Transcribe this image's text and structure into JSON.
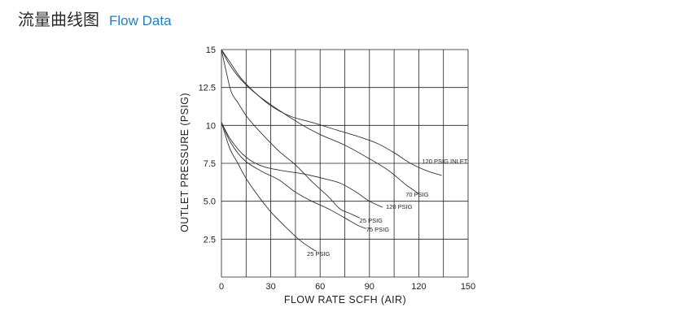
{
  "header": {
    "title_cn": "流量曲线图",
    "title_en": "Flow Data"
  },
  "chart_data": {
    "type": "line",
    "xlabel": "FLOW  RATE SCFH (AIR)",
    "ylabel": "OUTLET  PRESSURE (PSIG)",
    "xlim": [
      0,
      150
    ],
    "ylim": [
      0,
      15
    ],
    "x_ticks": [
      "0",
      "30",
      "60",
      "90",
      "120",
      "150"
    ],
    "y_ticks": [
      {
        "value": 15,
        "label": "15"
      },
      {
        "value": 12.5,
        "label": "12.5"
      },
      {
        "value": 10,
        "label": "10"
      },
      {
        "value": 7.5,
        "label": "7.5"
      },
      {
        "value": 5,
        "label": "5.0"
      },
      {
        "value": 2.5,
        "label": "2.5"
      }
    ],
    "grid": true,
    "grid_x_step": 15,
    "grid_y_step": 2.5,
    "series": [
      {
        "name": "120 PSIG INLET",
        "label_at": [
          122,
          7.5
        ],
        "points": [
          [
            0,
            15
          ],
          [
            5,
            14.2
          ],
          [
            12,
            13.1
          ],
          [
            20,
            12.2
          ],
          [
            30,
            11.3
          ],
          [
            42,
            10.6
          ],
          [
            55,
            10.2
          ],
          [
            70,
            9.7
          ],
          [
            85,
            9.2
          ],
          [
            95,
            8.8
          ],
          [
            105,
            8.2
          ],
          [
            115,
            7.5
          ],
          [
            125,
            7.0
          ],
          [
            134,
            6.7
          ]
        ]
      },
      {
        "name": "70 PSIG",
        "label_at": [
          112,
          5.3
        ],
        "points": [
          [
            0,
            15
          ],
          [
            5,
            14.0
          ],
          [
            12,
            13.0
          ],
          [
            22,
            12.0
          ],
          [
            35,
            11.0
          ],
          [
            48,
            10.1
          ],
          [
            60,
            9.4
          ],
          [
            75,
            8.7
          ],
          [
            90,
            7.8
          ],
          [
            102,
            7.0
          ],
          [
            112,
            6.1
          ],
          [
            120,
            5.5
          ]
        ]
      },
      {
        "name": "120 PSIG",
        "label_at": [
          100,
          4.5
        ],
        "points": [
          [
            0,
            10.2
          ],
          [
            6,
            9.0
          ],
          [
            15,
            7.9
          ],
          [
            25,
            7.3
          ],
          [
            38,
            7.0
          ],
          [
            50,
            6.8
          ],
          [
            62,
            6.5
          ],
          [
            72,
            6.2
          ],
          [
            82,
            5.6
          ],
          [
            90,
            5.0
          ],
          [
            98,
            4.6
          ]
        ]
      },
      {
        "name": "25 PSIG",
        "label_at": [
          84,
          3.6
        ],
        "points": [
          [
            0,
            15
          ],
          [
            3,
            13.5
          ],
          [
            6,
            12.2
          ],
          [
            10,
            11.5
          ],
          [
            16,
            10.5
          ],
          [
            25,
            9.4
          ],
          [
            35,
            8.3
          ],
          [
            45,
            7.4
          ],
          [
            55,
            6.3
          ],
          [
            65,
            5.3
          ],
          [
            72,
            4.5
          ],
          [
            78,
            4.2
          ],
          [
            84,
            3.9
          ]
        ]
      },
      {
        "name": "75 PSIG",
        "label_at": [
          88,
          3.0
        ],
        "points": [
          [
            0,
            10.2
          ],
          [
            6,
            8.8
          ],
          [
            14,
            7.7
          ],
          [
            24,
            7.0
          ],
          [
            35,
            6.4
          ],
          [
            45,
            5.6
          ],
          [
            55,
            5.0
          ],
          [
            65,
            4.5
          ],
          [
            75,
            3.9
          ],
          [
            83,
            3.4
          ],
          [
            88,
            3.2
          ]
        ]
      },
      {
        "name": "25 PSIG",
        "label_at": [
          52,
          1.4
        ],
        "points": [
          [
            0,
            10.2
          ],
          [
            5,
            8.5
          ],
          [
            10,
            7.5
          ],
          [
            15,
            6.5
          ],
          [
            22,
            5.4
          ],
          [
            30,
            4.3
          ],
          [
            40,
            3.2
          ],
          [
            48,
            2.4
          ],
          [
            56,
            1.8
          ],
          [
            58,
            1.7
          ]
        ]
      }
    ]
  }
}
